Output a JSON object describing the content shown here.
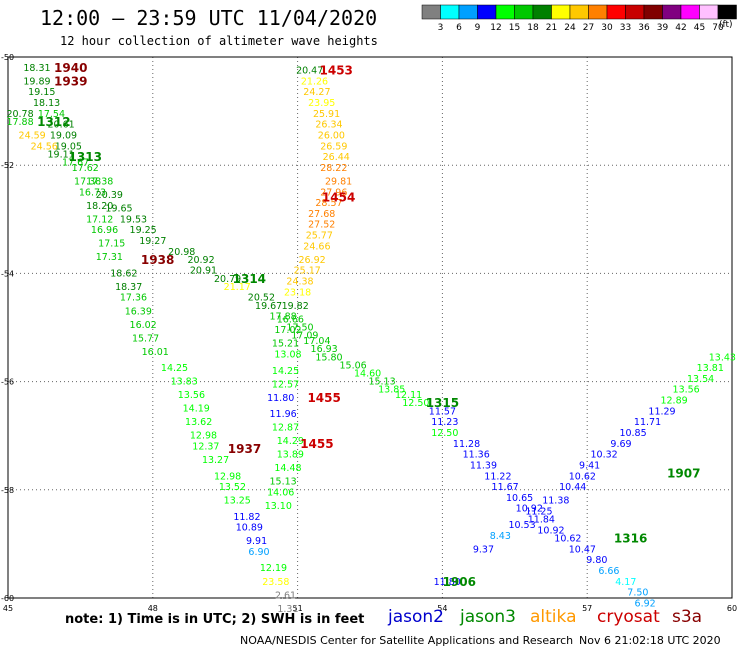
{
  "header": {
    "title": "12:00 – 23:59 UTC 11/04/2020",
    "subtitle": "12 hour collection of altimeter wave heights"
  },
  "colorbar": {
    "unit": "(ft)",
    "colors": [
      "#808080",
      "#00ffff",
      "#00a0ff",
      "#0000ff",
      "#00ff00",
      "#00c800",
      "#008000",
      "#ffff00",
      "#ffc800",
      "#ff8000",
      "#ff0000",
      "#c80000",
      "#800000",
      "#800080",
      "#ff00ff",
      "#ffc0ff",
      "#000000"
    ],
    "labels": [
      "3",
      "6",
      "9",
      "12",
      "15",
      "18",
      "21",
      "24",
      "27",
      "30",
      "33",
      "36",
      "39",
      "42",
      "45",
      "70"
    ]
  },
  "footer": {
    "note": "note:  1) Time is in UTC;  2) SWH is in feet",
    "credit": "NOAA/NESDIS Center for Satellite Applications and Research",
    "timestamp": "Nov  6 21:02:18 UTC 2020"
  },
  "satellites": [
    {
      "name": "jason2",
      "color": "#0000cc"
    },
    {
      "name": "jason3",
      "color": "#008800"
    },
    {
      "name": "altika",
      "color": "#ff9900"
    },
    {
      "name": "cryosat",
      "color": "#cc0000"
    },
    {
      "name": "s3a",
      "color": "#880000"
    }
  ],
  "chart_data": {
    "type": "scatter",
    "xlabel": "",
    "ylabel": "",
    "xlim": [
      45,
      60
    ],
    "ylim": [
      -60,
      -50
    ],
    "x_ticks": [
      45,
      48,
      51,
      54,
      57,
      60
    ],
    "y_ticks": [
      -50,
      -52,
      -54,
      -56,
      -58,
      -60
    ],
    "grid": true,
    "time_labels": [
      {
        "text": "1940",
        "x": 46.3,
        "y": -50.2,
        "color": "#880000"
      },
      {
        "text": "1939",
        "x": 46.3,
        "y": -50.45,
        "color": "#880000"
      },
      {
        "text": "1312",
        "x": 45.95,
        "y": -51.2,
        "color": "#008800"
      },
      {
        "text": "1313",
        "x": 46.6,
        "y": -51.85,
        "color": "#008800"
      },
      {
        "text": "1938",
        "x": 48.1,
        "y": -53.75,
        "color": "#880000"
      },
      {
        "text": "1314",
        "x": 50.0,
        "y": -54.1,
        "color": "#008800"
      },
      {
        "text": "1453",
        "x": 51.8,
        "y": -50.25,
        "color": "#cc0000"
      },
      {
        "text": "1454",
        "x": 51.85,
        "y": -52.6,
        "color": "#cc0000"
      },
      {
        "text": "1455",
        "x": 51.55,
        "y": -56.3,
        "color": "#cc0000"
      },
      {
        "text": "1455",
        "x": 51.4,
        "y": -57.15,
        "color": "#cc0000"
      },
      {
        "text": "1937",
        "x": 49.9,
        "y": -57.25,
        "color": "#880000"
      },
      {
        "text": "1315",
        "x": 54.0,
        "y": -56.4,
        "color": "#008800"
      },
      {
        "text": "1907",
        "x": 59.0,
        "y": -57.7,
        "color": "#008800"
      },
      {
        "text": "1316",
        "x": 57.9,
        "y": -58.9,
        "color": "#008800"
      },
      {
        "text": "1906",
        "x": 54.35,
        "y": -59.7,
        "color": "#008800"
      }
    ],
    "series": [
      {
        "name": "s3a",
        "points": [
          [
            45.6,
            -50.2,
            18.31
          ],
          [
            45.6,
            -50.45,
            19.89
          ],
          [
            45.7,
            -50.65,
            19.15
          ],
          [
            45.8,
            -50.85,
            18.13
          ],
          [
            45.9,
            -51.05,
            17.54
          ],
          [
            46.1,
            -51.25,
            20.61
          ],
          [
            46.15,
            -51.45,
            19.09
          ],
          [
            46.25,
            -51.65,
            19.05
          ],
          [
            46.4,
            -51.95,
            17.67
          ],
          [
            46.65,
            -52.3,
            17.38
          ],
          [
            46.75,
            -52.5,
            16.73
          ],
          [
            46.9,
            -52.75,
            18.2
          ],
          [
            46.9,
            -53.0,
            17.12
          ],
          [
            47.0,
            -53.2,
            16.96
          ],
          [
            47.15,
            -53.45,
            17.15
          ],
          [
            47.1,
            -53.7,
            17.31
          ],
          [
            47.4,
            -54.0,
            18.62
          ],
          [
            47.5,
            -54.25,
            18.37
          ],
          [
            47.6,
            -54.45,
            17.36
          ],
          [
            47.7,
            -54.7,
            16.39
          ],
          [
            47.8,
            -54.95,
            16.02
          ],
          [
            47.85,
            -55.2,
            15.77
          ],
          [
            48.05,
            -55.45,
            16.01
          ],
          [
            48.45,
            -55.75,
            14.25
          ],
          [
            48.65,
            -56.0,
            13.83
          ],
          [
            48.8,
            -56.25,
            13.56
          ],
          [
            48.9,
            -56.5,
            14.19
          ],
          [
            48.95,
            -56.75,
            13.62
          ],
          [
            49.05,
            -57.0,
            12.98
          ],
          [
            49.1,
            -57.2,
            12.37
          ],
          [
            49.3,
            -57.45,
            13.27
          ],
          [
            49.55,
            -57.75,
            12.98
          ],
          [
            49.65,
            -57.95,
            13.52
          ],
          [
            49.75,
            -58.2,
            13.25
          ],
          [
            49.95,
            -58.5,
            11.82
          ],
          [
            50.0,
            -58.7,
            10.89
          ],
          [
            50.15,
            -58.95,
            9.91
          ],
          [
            50.2,
            -59.15,
            6.9
          ],
          [
            50.5,
            -59.45,
            12.19
          ],
          [
            50.55,
            -59.7,
            23.58
          ],
          [
            50.75,
            -59.95,
            2.61
          ],
          [
            50.8,
            -60.2,
            1.31
          ]
        ]
      },
      {
        "name": "jason3",
        "points": [
          [
            45.25,
            -51.05,
            20.78
          ],
          [
            45.25,
            -51.2,
            17.88
          ],
          [
            45.5,
            -51.45,
            24.59
          ],
          [
            45.75,
            -51.65,
            24.56
          ],
          [
            46.1,
            -51.8,
            19.11
          ],
          [
            46.6,
            -52.05,
            17.62
          ],
          [
            46.9,
            -52.3,
            17.38
          ],
          [
            47.1,
            -52.55,
            20.39
          ],
          [
            47.3,
            -52.8,
            19.65
          ],
          [
            47.6,
            -53.0,
            19.53
          ],
          [
            47.8,
            -53.2,
            19.25
          ],
          [
            48.0,
            -53.4,
            19.27
          ],
          [
            48.6,
            -53.6,
            20.98
          ],
          [
            49.0,
            -53.75,
            20.92
          ],
          [
            49.05,
            -53.95,
            20.91
          ],
          [
            49.55,
            -54.1,
            20.79
          ],
          [
            49.75,
            -54.25,
            21.17
          ],
          [
            50.25,
            -54.45,
            20.52
          ],
          [
            50.4,
            -54.6,
            19.67
          ],
          [
            50.7,
            -54.8,
            17.88
          ],
          [
            51.05,
            -55.0,
            17.5
          ],
          [
            51.15,
            -55.15,
            17.09
          ],
          [
            51.4,
            -55.25,
            17.04
          ],
          [
            51.55,
            -55.4,
            16.93
          ],
          [
            51.65,
            -55.55,
            15.8
          ],
          [
            52.15,
            -55.7,
            15.06
          ],
          [
            52.45,
            -55.85,
            14.6
          ],
          [
            52.75,
            -56.0,
            15.13
          ],
          [
            52.95,
            -56.15,
            13.85
          ],
          [
            53.3,
            -56.25,
            12.11
          ],
          [
            53.45,
            -56.4,
            12.5
          ],
          [
            54.0,
            -56.55,
            11.57
          ],
          [
            54.05,
            -56.75,
            11.23
          ],
          [
            54.05,
            -56.95,
            12.5
          ],
          [
            54.5,
            -57.15,
            11.28
          ],
          [
            54.7,
            -57.35,
            11.36
          ],
          [
            54.85,
            -57.55,
            11.39
          ],
          [
            55.15,
            -57.75,
            11.22
          ],
          [
            55.3,
            -57.95,
            11.67
          ],
          [
            55.6,
            -58.15,
            10.65
          ],
          [
            55.8,
            -58.35,
            10.92
          ],
          [
            56.05,
            -58.55,
            11.84
          ],
          [
            56.25,
            -58.75,
            10.92
          ],
          [
            56.6,
            -58.9,
            10.62
          ],
          [
            56.9,
            -59.1,
            10.47
          ],
          [
            57.2,
            -59.3,
            9.8
          ],
          [
            57.45,
            -59.5,
            6.66
          ],
          [
            57.8,
            -59.7,
            4.17
          ],
          [
            58.05,
            -59.9,
            7.5
          ],
          [
            58.2,
            -60.1,
            6.92
          ]
        ]
      },
      {
        "name": "jason2",
        "points": [
          [
            54.1,
            -59.7,
            11.8
          ],
          [
            54.85,
            -59.1,
            9.37
          ],
          [
            55.2,
            -58.85,
            8.43
          ],
          [
            55.65,
            -58.65,
            10.53
          ],
          [
            56.0,
            -58.4,
            11.25
          ],
          [
            56.35,
            -58.2,
            11.38
          ],
          [
            56.7,
            -57.95,
            10.44
          ],
          [
            56.9,
            -57.75,
            10.62
          ],
          [
            57.05,
            -57.55,
            9.41
          ],
          [
            57.35,
            -57.35,
            10.32
          ],
          [
            57.7,
            -57.15,
            9.69
          ],
          [
            57.95,
            -56.95,
            10.85
          ],
          [
            58.25,
            -56.75,
            11.71
          ],
          [
            58.55,
            -56.55,
            11.29
          ],
          [
            58.8,
            -56.35,
            12.89
          ],
          [
            59.05,
            -56.15,
            13.56
          ],
          [
            59.35,
            -55.95,
            13.54
          ],
          [
            59.55,
            -55.75,
            13.81
          ],
          [
            59.8,
            -55.55,
            13.43
          ]
        ]
      },
      {
        "name": "altika",
        "points": [
          [
            51.25,
            -50.25,
            20.47
          ],
          [
            51.35,
            -50.45,
            21.26
          ],
          [
            51.4,
            -50.65,
            24.27
          ],
          [
            51.5,
            -50.85,
            23.95
          ],
          [
            51.6,
            -51.05,
            25.91
          ],
          [
            51.65,
            -51.25,
            26.34
          ],
          [
            51.7,
            -51.45,
            26.0
          ],
          [
            51.75,
            -51.65,
            26.59
          ],
          [
            51.8,
            -51.85,
            26.44
          ],
          [
            51.75,
            -52.05,
            28.22
          ],
          [
            51.85,
            -52.3,
            29.81
          ],
          [
            51.75,
            -52.5,
            27.96
          ],
          [
            51.65,
            -52.7,
            28.57
          ],
          [
            51.5,
            -52.9,
            27.68
          ],
          [
            51.5,
            -53.1,
            27.52
          ],
          [
            51.45,
            -53.3,
            25.77
          ],
          [
            51.4,
            -53.5,
            24.66
          ],
          [
            51.3,
            -53.75,
            26.92
          ],
          [
            51.2,
            -53.95,
            25.17
          ],
          [
            51.05,
            -54.15,
            24.38
          ],
          [
            51.0,
            -54.35,
            23.18
          ],
          [
            50.95,
            -54.6,
            19.82
          ],
          [
            50.85,
            -54.85,
            16.66
          ],
          [
            50.8,
            -55.05,
            17.02
          ],
          [
            50.75,
            -55.3,
            15.21
          ],
          [
            50.8,
            -55.5,
            13.08
          ],
          [
            50.75,
            -55.8,
            14.25
          ],
          [
            50.75,
            -56.05,
            12.57
          ],
          [
            50.65,
            -56.3,
            11.8
          ],
          [
            50.7,
            -56.6,
            11.96
          ],
          [
            50.75,
            -56.85,
            12.87
          ],
          [
            50.85,
            -57.1,
            14.29
          ],
          [
            50.85,
            -57.35,
            13.89
          ],
          [
            50.8,
            -57.6,
            14.48
          ],
          [
            50.7,
            -57.85,
            15.13
          ],
          [
            50.65,
            -58.05,
            14.06
          ],
          [
            50.6,
            -58.3,
            13.1
          ]
        ]
      }
    ]
  }
}
